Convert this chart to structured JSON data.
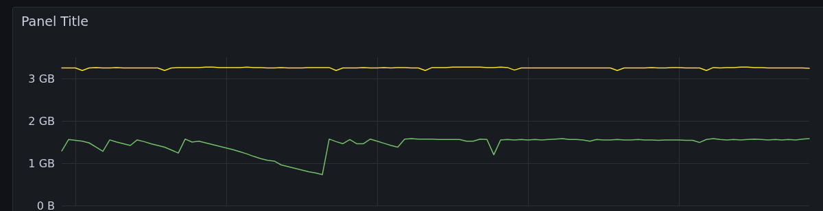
{
  "chart_data": {
    "type": "line",
    "title": "Panel Title",
    "categories": [
      null,
      null,
      null,
      null,
      null,
      null,
      null,
      null,
      null,
      null,
      null,
      null,
      null,
      null,
      null,
      null,
      null,
      null,
      null,
      null,
      null,
      null,
      null,
      null,
      null,
      null,
      null,
      null,
      null,
      null,
      null,
      null,
      null,
      null,
      null,
      null,
      null,
      null,
      null,
      null,
      null,
      null,
      null,
      null,
      null,
      null,
      null,
      null,
      null,
      null,
      null,
      null,
      null,
      null,
      null,
      null,
      null,
      null,
      null,
      null,
      null,
      null,
      null,
      null,
      null,
      null,
      null,
      null,
      null,
      null,
      null,
      null,
      null,
      null,
      null,
      null,
      null,
      null,
      null,
      null,
      null,
      null,
      null,
      null,
      null,
      null,
      null,
      null,
      null,
      null,
      null,
      null,
      null,
      null,
      null,
      null,
      null,
      null,
      null,
      null,
      null,
      null,
      null,
      null,
      null,
      null,
      null,
      null,
      null,
      null
    ],
    "series": [
      {
        "color": "#fade2a",
        "values": [
          3.25,
          3.25,
          3.25,
          3.19,
          3.25,
          3.26,
          3.25,
          3.25,
          3.26,
          3.25,
          3.25,
          3.25,
          3.25,
          3.25,
          3.25,
          3.19,
          3.25,
          3.26,
          3.26,
          3.26,
          3.26,
          3.27,
          3.27,
          3.26,
          3.26,
          3.26,
          3.26,
          3.27,
          3.26,
          3.26,
          3.25,
          3.25,
          3.26,
          3.25,
          3.25,
          3.25,
          3.26,
          3.26,
          3.26,
          3.26,
          3.19,
          3.25,
          3.25,
          3.25,
          3.26,
          3.25,
          3.25,
          3.26,
          3.25,
          3.26,
          3.26,
          3.25,
          3.25,
          3.19,
          3.26,
          3.26,
          3.26,
          3.27,
          3.27,
          3.27,
          3.27,
          3.27,
          3.26,
          3.26,
          3.27,
          3.26,
          3.2,
          3.25,
          3.25,
          3.25,
          3.25,
          3.25,
          3.25,
          3.25,
          3.25,
          3.25,
          3.25,
          3.25,
          3.25,
          3.25,
          3.25,
          3.19,
          3.25,
          3.25,
          3.25,
          3.25,
          3.26,
          3.25,
          3.25,
          3.26,
          3.26,
          3.25,
          3.25,
          3.25,
          3.19,
          3.26,
          3.25,
          3.26,
          3.26,
          3.27,
          3.27,
          3.26,
          3.26,
          3.25,
          3.25,
          3.25,
          3.25,
          3.25,
          3.25,
          3.24
        ]
      },
      {
        "color": "#73bf69",
        "values": [
          1.29,
          1.56,
          1.54,
          1.52,
          1.48,
          1.38,
          1.28,
          1.55,
          1.5,
          1.46,
          1.42,
          1.55,
          1.51,
          1.46,
          1.42,
          1.38,
          1.31,
          1.24,
          1.57,
          1.5,
          1.52,
          1.48,
          1.44,
          1.4,
          1.36,
          1.32,
          1.27,
          1.22,
          1.16,
          1.11,
          1.07,
          1.05,
          0.96,
          0.92,
          0.88,
          0.84,
          0.8,
          0.77,
          0.73,
          1.57,
          1.51,
          1.46,
          1.56,
          1.46,
          1.46,
          1.57,
          1.52,
          1.47,
          1.42,
          1.38,
          1.57,
          1.58,
          1.57,
          1.57,
          1.57,
          1.56,
          1.56,
          1.56,
          1.56,
          1.52,
          1.52,
          1.57,
          1.56,
          1.2,
          1.55,
          1.56,
          1.55,
          1.56,
          1.55,
          1.56,
          1.55,
          1.56,
          1.57,
          1.58,
          1.56,
          1.56,
          1.55,
          1.52,
          1.56,
          1.55,
          1.55,
          1.56,
          1.55,
          1.55,
          1.56,
          1.55,
          1.55,
          1.54,
          1.55,
          1.55,
          1.55,
          1.54,
          1.54,
          1.49,
          1.56,
          1.58,
          1.56,
          1.55,
          1.56,
          1.55,
          1.56,
          1.57,
          1.56,
          1.55,
          1.56,
          1.55,
          1.56,
          1.55,
          1.57,
          1.58
        ]
      }
    ],
    "ylim": [
      0,
      3.5
    ],
    "yticks": [
      {
        "value": 0,
        "label": "0 B"
      },
      {
        "value": 1,
        "label": "1 GB"
      },
      {
        "value": 2,
        "label": "2 GB"
      },
      {
        "value": 3,
        "label": "3 GB"
      }
    ],
    "grid": true,
    "tick_labels": "y",
    "marker": "none",
    "line_style": "solid"
  }
}
